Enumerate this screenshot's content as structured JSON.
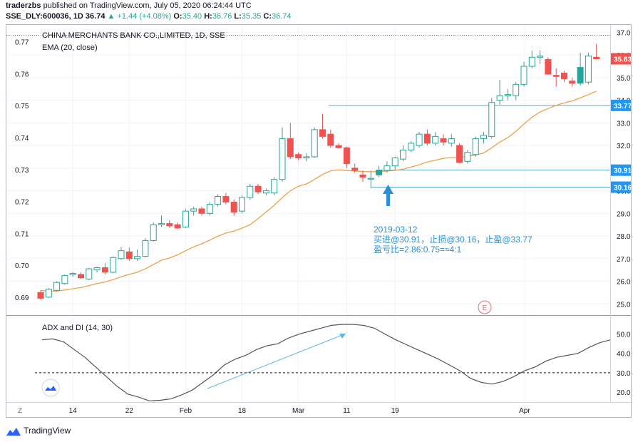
{
  "header": {
    "author": "traderzbs",
    "published_text": "published on TradingView.com, July 05, 2020 06:24:44 UTC",
    "symbol": "SSE_DLY:600036, 1D",
    "price": "36.74",
    "change": "+1.44 (+4.08%)",
    "o_label": "O:",
    "o_value": "35.40",
    "h_label": "H:",
    "h_value": "36.76",
    "l_label": "L:",
    "l_value": "35.35",
    "c_label": "C:",
    "c_value": "36.74"
  },
  "main": {
    "title": "CHINA MERCHANTS BANK CO.,LIMITED, 1D, SSE",
    "ema_label": "EMA (20, close)",
    "annotation": [
      "2019-03-12",
      "买进@30.91，止损@30.16，止盈@33.77",
      "盈亏比=2.86:0.75=≈4:1"
    ],
    "e_marker": "E"
  },
  "adx": {
    "title": "ADX and DI (14, 30)"
  },
  "colors": {
    "up": "#26a69a",
    "down": "#ef5350",
    "ema": "#f0a04b",
    "level": "#5aa9c9",
    "annot": "#2b8fd4",
    "adx": "#555555"
  },
  "chart_data": [
    {
      "type": "candlestick",
      "title": "CHINA MERCHANTS BANK CO.,LIMITED, 1D, SSE",
      "left_axis": {
        "ticks": [
          0.69,
          0.7,
          0.71,
          0.72,
          0.73,
          0.74,
          0.75,
          0.76,
          0.77
        ]
      },
      "right_axis": {
        "ticks": [
          25.0,
          26.0,
          27.0,
          28.0,
          29.0,
          30.0,
          31.0,
          32.0,
          33.0,
          34.0,
          35.0,
          36.0,
          37.0
        ],
        "ylim": [
          24.6,
          37.2
        ]
      },
      "x_ticks": [
        "14",
        "22",
        "Feb",
        "18",
        "Mar",
        "11",
        "19",
        "Apr"
      ],
      "levels": [
        {
          "label": "33.77",
          "value": 33.77
        },
        {
          "label": "30.91",
          "value": 30.91
        },
        {
          "label": "30.16",
          "value": 30.16
        }
      ],
      "last_price_label": "35.83",
      "last_price": 35.83,
      "candles": [
        {
          "o": 25.5,
          "h": 25.6,
          "l": 25.2,
          "c": 25.25
        },
        {
          "o": 25.3,
          "h": 25.7,
          "l": 25.25,
          "c": 25.65
        },
        {
          "o": 25.6,
          "h": 26.0,
          "l": 25.55,
          "c": 25.95
        },
        {
          "o": 25.9,
          "h": 26.3,
          "l": 25.85,
          "c": 26.25
        },
        {
          "o": 26.3,
          "h": 26.4,
          "l": 26.2,
          "c": 26.35
        },
        {
          "o": 26.3,
          "h": 26.4,
          "l": 26.1,
          "c": 26.15
        },
        {
          "o": 26.1,
          "h": 26.6,
          "l": 26.05,
          "c": 26.55
        },
        {
          "o": 26.5,
          "h": 26.65,
          "l": 26.4,
          "c": 26.6
        },
        {
          "o": 26.6,
          "h": 26.8,
          "l": 26.3,
          "c": 26.4
        },
        {
          "o": 26.4,
          "h": 27.1,
          "l": 26.35,
          "c": 27.05
        },
        {
          "o": 27.0,
          "h": 27.5,
          "l": 26.95,
          "c": 27.35
        },
        {
          "o": 27.3,
          "h": 27.5,
          "l": 26.9,
          "c": 27.0
        },
        {
          "o": 27.0,
          "h": 27.4,
          "l": 26.9,
          "c": 27.1
        },
        {
          "o": 27.1,
          "h": 27.9,
          "l": 27.05,
          "c": 27.8
        },
        {
          "o": 27.8,
          "h": 28.6,
          "l": 27.75,
          "c": 28.5
        },
        {
          "o": 28.5,
          "h": 28.9,
          "l": 28.4,
          "c": 28.55
        },
        {
          "o": 28.55,
          "h": 28.7,
          "l": 28.35,
          "c": 28.45
        },
        {
          "o": 28.5,
          "h": 28.6,
          "l": 28.3,
          "c": 28.35
        },
        {
          "o": 28.4,
          "h": 29.2,
          "l": 28.35,
          "c": 29.1
        },
        {
          "o": 29.1,
          "h": 29.3,
          "l": 28.9,
          "c": 29.2
        },
        {
          "o": 29.2,
          "h": 29.3,
          "l": 28.9,
          "c": 29.0
        },
        {
          "o": 29.0,
          "h": 29.5,
          "l": 28.9,
          "c": 29.4
        },
        {
          "o": 29.4,
          "h": 29.85,
          "l": 29.3,
          "c": 29.75
        },
        {
          "o": 29.75,
          "h": 29.9,
          "l": 29.4,
          "c": 29.5
        },
        {
          "o": 29.5,
          "h": 29.6,
          "l": 28.9,
          "c": 29.05
        },
        {
          "o": 29.1,
          "h": 29.8,
          "l": 29.0,
          "c": 29.7
        },
        {
          "o": 29.7,
          "h": 30.3,
          "l": 29.6,
          "c": 30.2
        },
        {
          "o": 30.2,
          "h": 30.3,
          "l": 29.85,
          "c": 29.95
        },
        {
          "o": 29.9,
          "h": 30.1,
          "l": 29.8,
          "c": 30.0
        },
        {
          "o": 29.9,
          "h": 30.6,
          "l": 29.8,
          "c": 30.5
        },
        {
          "o": 30.5,
          "h": 32.8,
          "l": 30.4,
          "c": 32.3
        },
        {
          "o": 32.3,
          "h": 33.0,
          "l": 31.4,
          "c": 31.5
        },
        {
          "o": 31.6,
          "h": 31.7,
          "l": 31.35,
          "c": 31.45
        },
        {
          "o": 31.45,
          "h": 31.65,
          "l": 31.3,
          "c": 31.5
        },
        {
          "o": 31.5,
          "h": 32.8,
          "l": 31.45,
          "c": 32.7
        },
        {
          "o": 32.7,
          "h": 33.4,
          "l": 32.3,
          "c": 32.4
        },
        {
          "o": 32.5,
          "h": 32.7,
          "l": 31.9,
          "c": 32.0
        },
        {
          "o": 32.0,
          "h": 32.1,
          "l": 31.85,
          "c": 31.9
        },
        {
          "o": 31.9,
          "h": 31.95,
          "l": 31.0,
          "c": 31.2
        },
        {
          "o": 31.0,
          "h": 31.2,
          "l": 30.8,
          "c": 30.9
        },
        {
          "o": 30.7,
          "h": 30.9,
          "l": 30.4,
          "c": 30.6
        },
        {
          "o": 30.55,
          "h": 30.9,
          "l": 30.1,
          "c": 30.55
        },
        {
          "o": 30.7,
          "h": 31.1,
          "l": 30.6,
          "c": 30.91
        },
        {
          "o": 30.9,
          "h": 31.3,
          "l": 30.8,
          "c": 31.1
        },
        {
          "o": 31.1,
          "h": 31.5,
          "l": 30.9,
          "c": 31.45
        },
        {
          "o": 31.4,
          "h": 32.0,
          "l": 31.3,
          "c": 31.8
        },
        {
          "o": 31.8,
          "h": 32.2,
          "l": 31.7,
          "c": 32.1
        },
        {
          "o": 32.0,
          "h": 32.6,
          "l": 31.9,
          "c": 32.5
        },
        {
          "o": 32.5,
          "h": 32.7,
          "l": 32.0,
          "c": 32.1
        },
        {
          "o": 32.1,
          "h": 32.6,
          "l": 32.0,
          "c": 32.4
        },
        {
          "o": 32.3,
          "h": 32.5,
          "l": 32.0,
          "c": 32.15
        },
        {
          "o": 32.1,
          "h": 32.5,
          "l": 31.95,
          "c": 32.3
        },
        {
          "o": 32.0,
          "h": 32.1,
          "l": 31.2,
          "c": 31.25
        },
        {
          "o": 31.3,
          "h": 31.8,
          "l": 31.2,
          "c": 31.7
        },
        {
          "o": 31.6,
          "h": 32.4,
          "l": 31.5,
          "c": 32.3
        },
        {
          "o": 32.3,
          "h": 32.6,
          "l": 32.1,
          "c": 32.45
        },
        {
          "o": 32.4,
          "h": 34.1,
          "l": 32.3,
          "c": 33.9
        },
        {
          "o": 34.0,
          "h": 34.9,
          "l": 33.8,
          "c": 34.2
        },
        {
          "o": 34.2,
          "h": 34.5,
          "l": 34.0,
          "c": 34.25
        },
        {
          "o": 34.2,
          "h": 34.8,
          "l": 34.0,
          "c": 34.7
        },
        {
          "o": 34.7,
          "h": 35.7,
          "l": 34.6,
          "c": 35.5
        },
        {
          "o": 35.5,
          "h": 36.2,
          "l": 35.4,
          "c": 35.9
        },
        {
          "o": 35.9,
          "h": 36.2,
          "l": 35.6,
          "c": 35.95
        },
        {
          "o": 35.8,
          "h": 35.9,
          "l": 35.15,
          "c": 35.15
        },
        {
          "o": 35.1,
          "h": 35.4,
          "l": 34.6,
          "c": 35.05
        },
        {
          "o": 35.2,
          "h": 35.3,
          "l": 34.8,
          "c": 34.95
        },
        {
          "o": 34.85,
          "h": 35.0,
          "l": 34.6,
          "c": 34.75
        },
        {
          "o": 34.75,
          "h": 36.1,
          "l": 34.65,
          "c": 35.45
        },
        {
          "o": 34.8,
          "h": 36.1,
          "l": 34.7,
          "c": 35.95
        },
        {
          "o": 35.9,
          "h": 36.5,
          "l": 35.8,
          "c": 35.83
        }
      ],
      "ema": [
        25.6,
        25.56,
        25.57,
        25.61,
        25.67,
        25.72,
        25.81,
        25.9,
        25.97,
        26.07,
        26.2,
        26.31,
        26.4,
        26.55,
        26.74,
        26.93,
        27.03,
        27.17,
        27.35,
        27.52,
        27.66,
        27.82,
        27.99,
        28.13,
        28.22,
        28.35,
        28.5,
        28.77,
        29.06,
        29.36,
        29.7,
        30.0,
        30.2,
        30.3,
        30.5,
        30.72,
        30.88,
        30.92,
        30.89,
        30.87,
        30.85,
        30.84,
        30.85,
        30.87,
        30.9,
        30.95,
        31.05,
        31.15,
        31.27,
        31.35,
        31.43,
        31.47,
        31.48,
        31.52,
        31.58,
        31.67,
        31.9,
        32.15,
        32.35,
        32.62,
        32.95,
        33.25,
        33.48,
        33.63,
        33.77,
        33.88,
        33.97,
        34.1,
        34.25,
        34.4
      ]
    },
    {
      "type": "line",
      "title": "ADX and DI (14, 30)",
      "y_ticks": [
        20.0,
        30.0,
        40.0,
        50.0
      ],
      "ylim": [
        14.5,
        55.0
      ],
      "threshold": 30.0,
      "series": [
        {
          "values": [
            47,
            47.5,
            46,
            42,
            38,
            33,
            28,
            23,
            19,
            17.5,
            15.5,
            15.8,
            16.5,
            18.5,
            21,
            25,
            29,
            34,
            37,
            39,
            42,
            44,
            45,
            48,
            50,
            51.5,
            53,
            54.5,
            55,
            55,
            54.5,
            53,
            50,
            47,
            44.5,
            42,
            39.5,
            37,
            34,
            31,
            27,
            25,
            24.2,
            25.5,
            28,
            31,
            33,
            36,
            38,
            39,
            40,
            43,
            45.5,
            47
          ]
        }
      ]
    }
  ]
}
